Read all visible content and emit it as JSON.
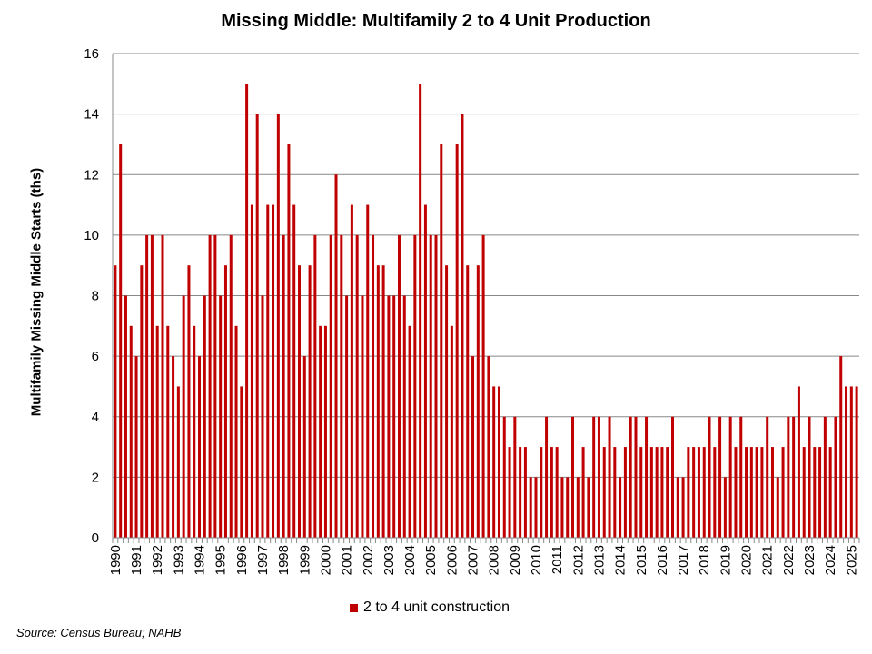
{
  "chart_data": {
    "type": "bar",
    "title": "Missing Middle: Multifamily 2 to 4 Unit Production",
    "xlabel": "",
    "ylabel": "Multifamily Missing Middle Starts (ths)",
    "ylim": [
      0,
      16
    ],
    "yticks": [
      0,
      2,
      4,
      6,
      8,
      10,
      12,
      14,
      16
    ],
    "grid": true,
    "legend_position": "bottom",
    "bar_color": "#C00000",
    "x_tick_labels": [
      "1990",
      "1991",
      "1992",
      "1993",
      "1994",
      "1995",
      "1996",
      "1997",
      "1998",
      "1999",
      "2000",
      "2001",
      "2002",
      "2003",
      "2004",
      "2005",
      "2006",
      "2007",
      "2008",
      "2009",
      "2010",
      "2011",
      "2012",
      "2013",
      "2014",
      "2015",
      "2016",
      "2017",
      "2018",
      "2019",
      "2020",
      "2021",
      "2022",
      "2023",
      "2024",
      "2025"
    ],
    "series": [
      {
        "name": "2 to 4 unit construction",
        "values": [
          9,
          13,
          8,
          7,
          6,
          9,
          10,
          10,
          7,
          10,
          7,
          6,
          5,
          8,
          9,
          7,
          6,
          8,
          10,
          10,
          8,
          9,
          10,
          7,
          5,
          15,
          11,
          14,
          8,
          11,
          11,
          14,
          10,
          13,
          11,
          9,
          6,
          9,
          10,
          7,
          7,
          10,
          12,
          10,
          8,
          11,
          10,
          8,
          11,
          10,
          9,
          9,
          8,
          8,
          10,
          8,
          7,
          10,
          15,
          11,
          10,
          10,
          13,
          9,
          7,
          13,
          14,
          9,
          6,
          9,
          10,
          6,
          5,
          5,
          4,
          3,
          4,
          3,
          3,
          2,
          2,
          3,
          4,
          3,
          3,
          2,
          2,
          4,
          2,
          3,
          2,
          4,
          4,
          3,
          4,
          3,
          2,
          3,
          4,
          4,
          3,
          4,
          3,
          3,
          3,
          3,
          4,
          2,
          2,
          3,
          3,
          3,
          3,
          4,
          3,
          4,
          2,
          4,
          3,
          4,
          3,
          3,
          3,
          3,
          4,
          3,
          2,
          3,
          4,
          4,
          5,
          3,
          4,
          3,
          3,
          4,
          3,
          4,
          6,
          5,
          5,
          5
        ]
      }
    ]
  },
  "source": "Source: Census Bureau; NAHB"
}
